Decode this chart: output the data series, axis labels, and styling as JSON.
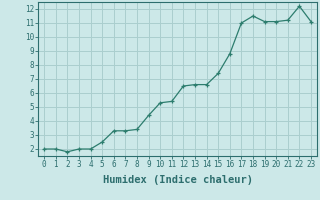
{
  "x": [
    0,
    1,
    2,
    3,
    4,
    5,
    6,
    7,
    8,
    9,
    10,
    11,
    12,
    13,
    14,
    15,
    16,
    17,
    18,
    19,
    20,
    21,
    22,
    23
  ],
  "y": [
    2,
    2,
    1.8,
    2,
    2,
    2.5,
    3.3,
    3.3,
    3.4,
    4.4,
    5.3,
    5.4,
    6.5,
    6.6,
    6.6,
    7.4,
    8.8,
    11.0,
    11.5,
    11.1,
    11.1,
    11.2,
    12.2,
    11.1
  ],
  "line_color": "#2d7d6e",
  "marker": "+",
  "marker_size": 3,
  "bg_color": "#cce8e8",
  "grid_color": "#aacece",
  "xlabel": "Humidex (Indice chaleur)",
  "ylim": [
    1.5,
    12.5
  ],
  "xlim": [
    -0.5,
    23.5
  ],
  "yticks": [
    2,
    3,
    4,
    5,
    6,
    7,
    8,
    9,
    10,
    11,
    12
  ],
  "xticks": [
    0,
    1,
    2,
    3,
    4,
    5,
    6,
    7,
    8,
    9,
    10,
    11,
    12,
    13,
    14,
    15,
    16,
    17,
    18,
    19,
    20,
    21,
    22,
    23
  ],
  "tick_color": "#2d6e6e",
  "axis_color": "#2d6e6e",
  "label_fontsize": 5.5,
  "xlabel_fontsize": 7.5
}
